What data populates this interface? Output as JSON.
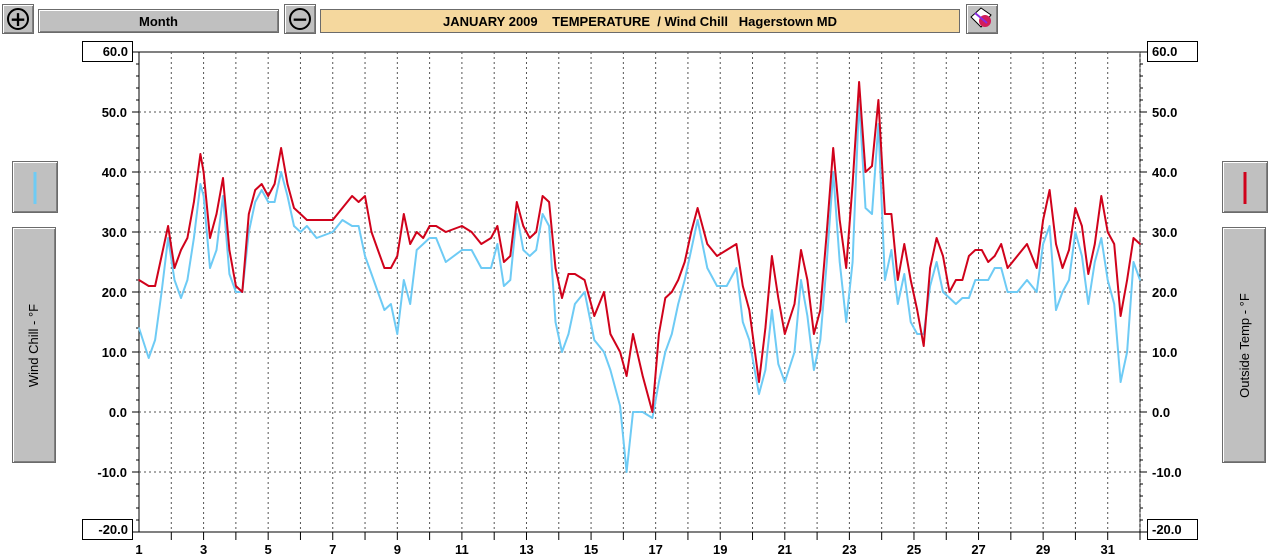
{
  "toolbar": {
    "range_label": "Month",
    "zoom_in_glyph": "+",
    "zoom_out_glyph": "−",
    "title": "JANUARY 2009    TEMPERATURE  / Wind Chill   Hagerstown MD",
    "print_icon": "print-icon"
  },
  "left_panel": {
    "axis_label": "Wind Chill - °F"
  },
  "right_panel": {
    "axis_label": "Outside Temp - °F"
  },
  "colors": {
    "wind_chill": "#6ecbf5",
    "outside_temp": "#d0021b"
  },
  "chart_data": {
    "type": "line",
    "title": "JANUARY 2009    TEMPERATURE  / Wind Chill   Hagerstown MD",
    "ylim": [
      -20,
      60
    ],
    "xlim": [
      1,
      32
    ],
    "y_ticks": [
      "60.0",
      "50.0",
      "40.0",
      "30.0",
      "20.0",
      "10.0",
      "0.0",
      "-10.0",
      "-20.0"
    ],
    "y_tick_values": [
      60,
      50,
      40,
      30,
      20,
      10,
      0,
      -10,
      -20
    ],
    "x_ticks": [
      "1",
      "3",
      "5",
      "7",
      "9",
      "11",
      "13",
      "15",
      "17",
      "19",
      "21",
      "23",
      "25",
      "27",
      "29",
      "31"
    ],
    "x_tick_values": [
      1,
      3,
      5,
      7,
      9,
      11,
      13,
      15,
      17,
      19,
      21,
      23,
      25,
      27,
      29,
      31
    ],
    "grid": true,
    "series": [
      {
        "name": "Outside Temp",
        "axis": "right",
        "x": [
          1,
          1.3,
          1.5,
          1.7,
          1.9,
          2.1,
          2.3,
          2.5,
          2.7,
          2.9,
          3.0,
          3.2,
          3.4,
          3.6,
          3.8,
          4.0,
          4.2,
          4.4,
          4.6,
          4.8,
          5.0,
          5.2,
          5.4,
          5.6,
          5.8,
          6.0,
          6.2,
          6.5,
          7.0,
          7.3,
          7.6,
          7.8,
          8.0,
          8.2,
          8.4,
          8.6,
          8.8,
          9.0,
          9.2,
          9.4,
          9.6,
          9.8,
          10.0,
          10.2,
          10.5,
          11.0,
          11.3,
          11.6,
          11.9,
          12.1,
          12.3,
          12.5,
          12.7,
          12.9,
          13.1,
          13.3,
          13.5,
          13.7,
          13.9,
          14.1,
          14.3,
          14.5,
          14.8,
          15.1,
          15.4,
          15.6,
          15.9,
          16.1,
          16.3,
          16.6,
          16.9,
          17.1,
          17.3,
          17.5,
          17.7,
          17.9,
          18.1,
          18.3,
          18.6,
          18.9,
          19.2,
          19.5,
          19.7,
          19.9,
          20.2,
          20.4,
          20.6,
          20.8,
          21.0,
          21.3,
          21.5,
          21.7,
          21.9,
          22.1,
          22.3,
          22.5,
          22.7,
          22.9,
          23.1,
          23.3,
          23.5,
          23.7,
          23.9,
          24.1,
          24.3,
          24.5,
          24.7,
          24.9,
          25.1,
          25.3,
          25.5,
          25.7,
          25.9,
          26.1,
          26.3,
          26.5,
          26.7,
          26.9,
          27.1,
          27.3,
          27.5,
          27.7,
          27.9,
          28.2,
          28.5,
          28.8,
          29.0,
          29.2,
          29.4,
          29.6,
          29.8,
          30.0,
          30.2,
          30.4,
          30.6,
          30.8,
          31.0,
          31.2,
          31.4,
          31.6,
          31.8,
          32.0
        ],
        "values": [
          22,
          21,
          21,
          26,
          31,
          24,
          27,
          29,
          35,
          43,
          40,
          29,
          33,
          39,
          27,
          21,
          20,
          33,
          37,
          38,
          36,
          38,
          44,
          38,
          34,
          33,
          32,
          32,
          32,
          34,
          36,
          35,
          36,
          30,
          27,
          24,
          24,
          26,
          33,
          28,
          30,
          29,
          31,
          31,
          30,
          31,
          30,
          28,
          29,
          31,
          25,
          26,
          35,
          31,
          29,
          30,
          36,
          35,
          24,
          19,
          23,
          23,
          22,
          16,
          20,
          13,
          10,
          6,
          13,
          6,
          0,
          13,
          19,
          20,
          22,
          25,
          30,
          34,
          28,
          26,
          27,
          28,
          21,
          17,
          5,
          14,
          26,
          19,
          13,
          18,
          27,
          22,
          13,
          17,
          30,
          44,
          32,
          24,
          38,
          55,
          40,
          41,
          52,
          33,
          33,
          22,
          28,
          22,
          17,
          11,
          24,
          29,
          26,
          20,
          22,
          22,
          26,
          27,
          27,
          25,
          26,
          28,
          24,
          26,
          28,
          24,
          32,
          37,
          28,
          24,
          27,
          34,
          31,
          23,
          28,
          36,
          30,
          28,
          16,
          22,
          29,
          28
        ],
        "color": "#d0021b"
      },
      {
        "name": "Wind Chill",
        "axis": "left",
        "x": [
          1,
          1.3,
          1.5,
          1.7,
          1.9,
          2.1,
          2.3,
          2.5,
          2.7,
          2.9,
          3.0,
          3.2,
          3.4,
          3.6,
          3.8,
          4.0,
          4.2,
          4.4,
          4.6,
          4.8,
          5.0,
          5.2,
          5.4,
          5.6,
          5.8,
          6.0,
          6.2,
          6.5,
          7.0,
          7.3,
          7.6,
          7.8,
          8.0,
          8.2,
          8.4,
          8.6,
          8.8,
          9.0,
          9.2,
          9.4,
          9.6,
          9.8,
          10.0,
          10.2,
          10.5,
          11.0,
          11.3,
          11.6,
          11.9,
          12.1,
          12.3,
          12.5,
          12.7,
          12.9,
          13.1,
          13.3,
          13.5,
          13.7,
          13.9,
          14.1,
          14.3,
          14.5,
          14.8,
          15.1,
          15.4,
          15.6,
          15.9,
          16.1,
          16.3,
          16.6,
          16.9,
          17.1,
          17.3,
          17.5,
          17.7,
          17.9,
          18.1,
          18.3,
          18.6,
          18.9,
          19.2,
          19.5,
          19.7,
          19.9,
          20.2,
          20.4,
          20.6,
          20.8,
          21.0,
          21.3,
          21.5,
          21.7,
          21.9,
          22.1,
          22.3,
          22.5,
          22.7,
          22.9,
          23.1,
          23.3,
          23.5,
          23.7,
          23.9,
          24.1,
          24.3,
          24.5,
          24.7,
          24.9,
          25.1,
          25.3,
          25.5,
          25.7,
          25.9,
          26.1,
          26.3,
          26.5,
          26.7,
          26.9,
          27.1,
          27.3,
          27.5,
          27.7,
          27.9,
          28.2,
          28.5,
          28.8,
          29.0,
          29.2,
          29.4,
          29.6,
          29.8,
          30.0,
          30.2,
          30.4,
          30.6,
          30.8,
          31.0,
          31.2,
          31.4,
          31.6,
          31.8,
          32.0
        ],
        "values": [
          14,
          9,
          12,
          20,
          29,
          22,
          19,
          22,
          29,
          38,
          36,
          24,
          27,
          36,
          23,
          20,
          20,
          30,
          35,
          37,
          35,
          35,
          40,
          36,
          31,
          30,
          31,
          29,
          30,
          32,
          31,
          31,
          26,
          23,
          20,
          17,
          18,
          13,
          22,
          18,
          27,
          28,
          29,
          29,
          25,
          27,
          27,
          24,
          24,
          28,
          21,
          22,
          33,
          27,
          26,
          27,
          33,
          31,
          15,
          10,
          13,
          18,
          20,
          12,
          10,
          7,
          1,
          -10,
          0,
          0,
          -1,
          5,
          10,
          13,
          18,
          22,
          27,
          32,
          24,
          21,
          21,
          24,
          15,
          12,
          3,
          7,
          17,
          8,
          5,
          10,
          22,
          16,
          7,
          12,
          25,
          40,
          25,
          15,
          25,
          52,
          34,
          33,
          48,
          22,
          27,
          18,
          23,
          15,
          13,
          13,
          21,
          25,
          20,
          19,
          18,
          19,
          19,
          22,
          22,
          22,
          24,
          24,
          20,
          20,
          22,
          20,
          28,
          31,
          17,
          20,
          22,
          30,
          26,
          18,
          25,
          29,
          22,
          18,
          5,
          10,
          25,
          22
        ],
        "color": "#6ecbf5"
      }
    ]
  }
}
